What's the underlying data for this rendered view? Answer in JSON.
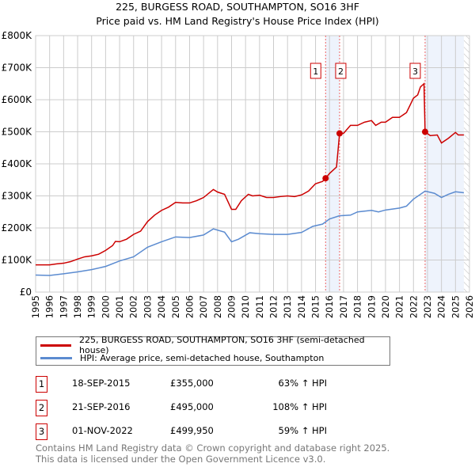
{
  "chart_data": {
    "type": "line",
    "title": "225, BURGESS ROAD, SOUTHAMPTON, SO16 3HF",
    "subtitle": "Price paid vs. HM Land Registry's House Price Index (HPI)",
    "xlim": [
      1995,
      2026
    ],
    "ylim": [
      0,
      800000
    ],
    "x_ticks": [
      "1995",
      "1996",
      "1997",
      "1998",
      "1999",
      "2000",
      "2001",
      "2002",
      "2003",
      "2004",
      "2005",
      "2006",
      "2007",
      "2008",
      "2009",
      "2010",
      "2011",
      "2012",
      "2013",
      "2014",
      "2015",
      "2016",
      "2017",
      "2018",
      "2019",
      "2020",
      "2021",
      "2022",
      "2023",
      "2024",
      "2025",
      "2026"
    ],
    "y_ticks": [
      {
        "v": 0,
        "l": "£0"
      },
      {
        "v": 100000,
        "l": "£100K"
      },
      {
        "v": 200000,
        "l": "£200K"
      },
      {
        "v": 300000,
        "l": "£300K"
      },
      {
        "v": 400000,
        "l": "£400K"
      },
      {
        "v": 500000,
        "l": "£500K"
      },
      {
        "v": 600000,
        "l": "£600K"
      },
      {
        "v": 700000,
        "l": "£700K"
      },
      {
        "v": 800000,
        "l": "£800K"
      }
    ],
    "grid": true,
    "series": [
      {
        "name": "225, BURGESS ROAD, SOUTHAMPTON, SO16 3HF (semi-detached house)",
        "color": "#cc0000",
        "x": [
          1995,
          1996,
          1996.5,
          1997,
          1997.5,
          1998,
          1998.5,
          1999,
          1999.5,
          2000,
          2000.5,
          2000.7,
          2001,
          2001.5,
          2002,
          2002.5,
          2003,
          2003.5,
          2004,
          2004.5,
          2005,
          2005.5,
          2006,
          2006.5,
          2007,
          2007.7,
          2008,
          2008.5,
          2009,
          2009.3,
          2009.7,
          2010.2,
          2010.5,
          2011,
          2011.5,
          2012,
          2012.5,
          2013,
          2013.5,
          2014,
          2014.5,
          2015,
          2015.5,
          2015.72,
          2016,
          2016.5,
          2016.72,
          2017,
          2017.5,
          2018,
          2018.5,
          2019,
          2019.3,
          2019.7,
          2020,
          2020.5,
          2021,
          2021.5,
          2022,
          2022.3,
          2022.5,
          2022.75,
          2022.83,
          2023.2,
          2023.7,
          2024,
          2024.5,
          2025,
          2025.2,
          2025.6
        ],
        "y": [
          85000,
          85000,
          88000,
          90000,
          95000,
          103000,
          110000,
          113000,
          118000,
          130000,
          145000,
          158000,
          157000,
          165000,
          180000,
          190000,
          220000,
          240000,
          255000,
          265000,
          280000,
          278000,
          278000,
          285000,
          295000,
          320000,
          312000,
          305000,
          258000,
          258000,
          285000,
          305000,
          300000,
          302000,
          295000,
          295000,
          298000,
          300000,
          298000,
          303000,
          315000,
          338000,
          345000,
          355000,
          370000,
          390000,
          495000,
          495000,
          520000,
          520000,
          530000,
          535000,
          520000,
          530000,
          530000,
          545000,
          545000,
          560000,
          605000,
          615000,
          640000,
          650000,
          500000,
          488000,
          490000,
          465000,
          480000,
          498000,
          490000,
          490000
        ]
      },
      {
        "name": "HPI: Average price, semi-detached house, Southampton",
        "color": "#5b8bd0",
        "x": [
          1995,
          1996,
          1997,
          1998,
          1999,
          2000,
          2001,
          2002,
          2003,
          2004,
          2005,
          2006,
          2007,
          2007.7,
          2008.5,
          2009,
          2009.5,
          2010.3,
          2011,
          2012,
          2013,
          2014,
          2014.8,
          2015.5,
          2016,
          2016.7,
          2017.5,
          2018,
          2019,
          2019.5,
          2020,
          2021,
          2021.5,
          2022,
          2022.5,
          2022.83,
          2023.5,
          2024,
          2024.5,
          2025,
          2025.6
        ],
        "y": [
          53000,
          52000,
          57000,
          63000,
          70000,
          80000,
          97000,
          110000,
          140000,
          157000,
          172000,
          170000,
          178000,
          197000,
          187000,
          157000,
          165000,
          185000,
          182000,
          180000,
          180000,
          186000,
          205000,
          212000,
          228000,
          238000,
          240000,
          250000,
          255000,
          250000,
          256000,
          262000,
          268000,
          290000,
          305000,
          315000,
          308000,
          295000,
          305000,
          313000,
          310000
        ]
      }
    ],
    "sales": [
      {
        "id": "1",
        "x": 2015.72,
        "y": 355000,
        "date": "18-SEP-2015",
        "price": "£355,000",
        "hpi": "63% ↑ HPI"
      },
      {
        "id": "2",
        "x": 2016.72,
        "y": 495000,
        "date": "21-SEP-2016",
        "price": "£495,000",
        "hpi": "108% ↑ HPI"
      },
      {
        "id": "3",
        "x": 2022.83,
        "y": 499950,
        "date": "01-NOV-2022",
        "price": "£499,950",
        "hpi": "59% ↑ HPI"
      }
    ],
    "shaded_ranges": [
      [
        2015.72,
        2016.72
      ],
      [
        2022.83,
        2025.6
      ]
    ],
    "hatched_from": 2025.6
  },
  "footer": [
    "Contains HM Land Registry data © Crown copyright and database right 2025.",
    "This data is licensed under the Open Government Licence v3.0."
  ]
}
